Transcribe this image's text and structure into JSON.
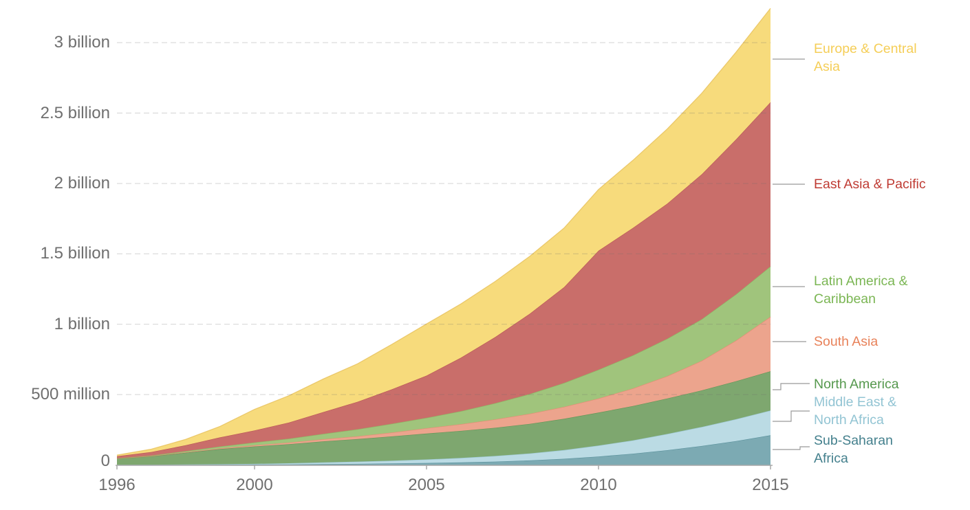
{
  "chart_data": {
    "type": "area",
    "stacked": true,
    "title": "",
    "xlabel": "",
    "ylabel": "",
    "values_unit": "millions of people",
    "grid": "horizontal-dashed",
    "legend_position": "right",
    "xlim": [
      1996,
      2015
    ],
    "ylim_millions": [
      0,
      3300
    ],
    "years": [
      1996,
      1997,
      1998,
      1999,
      2000,
      2001,
      2002,
      2003,
      2004,
      2005,
      2006,
      2007,
      2008,
      2009,
      2010,
      2011,
      2012,
      2013,
      2014,
      2015
    ],
    "x_ticks": [
      1996,
      2000,
      2005,
      2010,
      2015
    ],
    "y_ticks": [
      {
        "value": 0,
        "label": "0"
      },
      {
        "value": 500,
        "label": "500 million"
      },
      {
        "value": 1000,
        "label": "1 billion"
      },
      {
        "value": 1500,
        "label": "1.5 billion"
      },
      {
        "value": 2000,
        "label": "2 billion"
      },
      {
        "value": 2500,
        "label": "2.5 billion"
      },
      {
        "value": 3000,
        "label": "3 billion"
      }
    ],
    "series": [
      {
        "name": "Sub-Saharan Africa",
        "fill": "#7CAAB3",
        "stroke": "#568E99",
        "values": [
          0.5,
          0.8,
          1.2,
          2,
          3,
          4,
          6,
          8,
          11,
          14,
          18,
          24,
          32,
          44,
          60,
          80,
          105,
          135,
          170,
          211
        ]
      },
      {
        "name": "Middle East & North Africa",
        "fill": "#BBDBE4",
        "stroke": "#9CC9D6",
        "values": [
          0.6,
          1.2,
          2,
          3.5,
          5,
          8,
          12,
          16,
          20,
          25,
          32,
          40,
          50,
          62,
          78,
          95,
          115,
          135,
          155,
          176
        ]
      },
      {
        "name": "North America",
        "fill": "#7EA76F",
        "stroke": "#639455",
        "values": [
          44,
          60,
          84,
          108,
          124,
          136,
          150,
          160,
          172,
          184,
          192,
          200,
          210,
          222,
          234,
          244,
          252,
          260,
          270,
          279
        ]
      },
      {
        "name": "South Asia",
        "fill": "#ECA48D",
        "stroke": "#E18B6E",
        "values": [
          0.7,
          1.5,
          3,
          5,
          8,
          11,
          15,
          20,
          28,
          38,
          48,
          60,
          72,
          85,
          100,
          125,
          160,
          210,
          290,
          387
        ]
      },
      {
        "name": "Latin America & Caribbean",
        "fill": "#A0C47C",
        "stroke": "#89B55E",
        "values": [
          2,
          4,
          8,
          13,
          20,
          28,
          38,
          50,
          62,
          74,
          92,
          115,
          140,
          170,
          205,
          235,
          265,
          295,
          328,
          358
        ]
      },
      {
        "name": "East Asia & Pacific",
        "fill": "#C96E6A",
        "stroke": "#B85653",
        "values": [
          14,
          25,
          42,
          65,
          85,
          115,
          155,
          195,
          245,
          300,
          380,
          470,
          570,
          680,
          845,
          905,
          960,
          1030,
          1100,
          1166
        ]
      },
      {
        "name": "Europe & Central Asia",
        "fill": "#F7DB7C",
        "stroke": "#E9C463",
        "values": [
          8,
          20,
          42,
          78,
          150,
          190,
          235,
          270,
          320,
          367,
          382,
          395,
          408,
          420,
          435,
          480,
          530,
          575,
          620,
          667
        ]
      }
    ]
  },
  "legend": {
    "entries": [
      {
        "id": "europe-central-asia",
        "label": "Europe & Central Asia",
        "lines": [
          "Europe & Central",
          "Asia"
        ],
        "color": "#F5CE57"
      },
      {
        "id": "east-asia-pacific",
        "label": "East Asia & Pacific",
        "lines": [
          "East Asia & Pacific"
        ],
        "color": "#BF3B33"
      },
      {
        "id": "latin-america-caribbean",
        "label": "Latin America & Caribbean",
        "lines": [
          "Latin America &",
          "Caribbean"
        ],
        "color": "#7BB654"
      },
      {
        "id": "south-asia",
        "label": "South Asia",
        "lines": [
          "South Asia"
        ],
        "color": "#E8825A"
      },
      {
        "id": "north-america",
        "label": "North America",
        "lines": [
          "North America"
        ],
        "color": "#55984D"
      },
      {
        "id": "middle-east-north-africa",
        "label": "Middle East & North Africa",
        "lines": [
          "Middle East &",
          "North Africa"
        ],
        "color": "#92C4D3"
      },
      {
        "id": "sub-saharan-africa",
        "label": "Sub-Saharan Africa",
        "lines": [
          "Sub-Saharan",
          "Africa"
        ],
        "color": "#44808D"
      }
    ]
  },
  "colors": {
    "background": "#ffffff",
    "axis_text": "#6f6f6f",
    "grid": "#6e6e6e",
    "axis_line": "#a8a8a8",
    "connector": "#999999"
  }
}
